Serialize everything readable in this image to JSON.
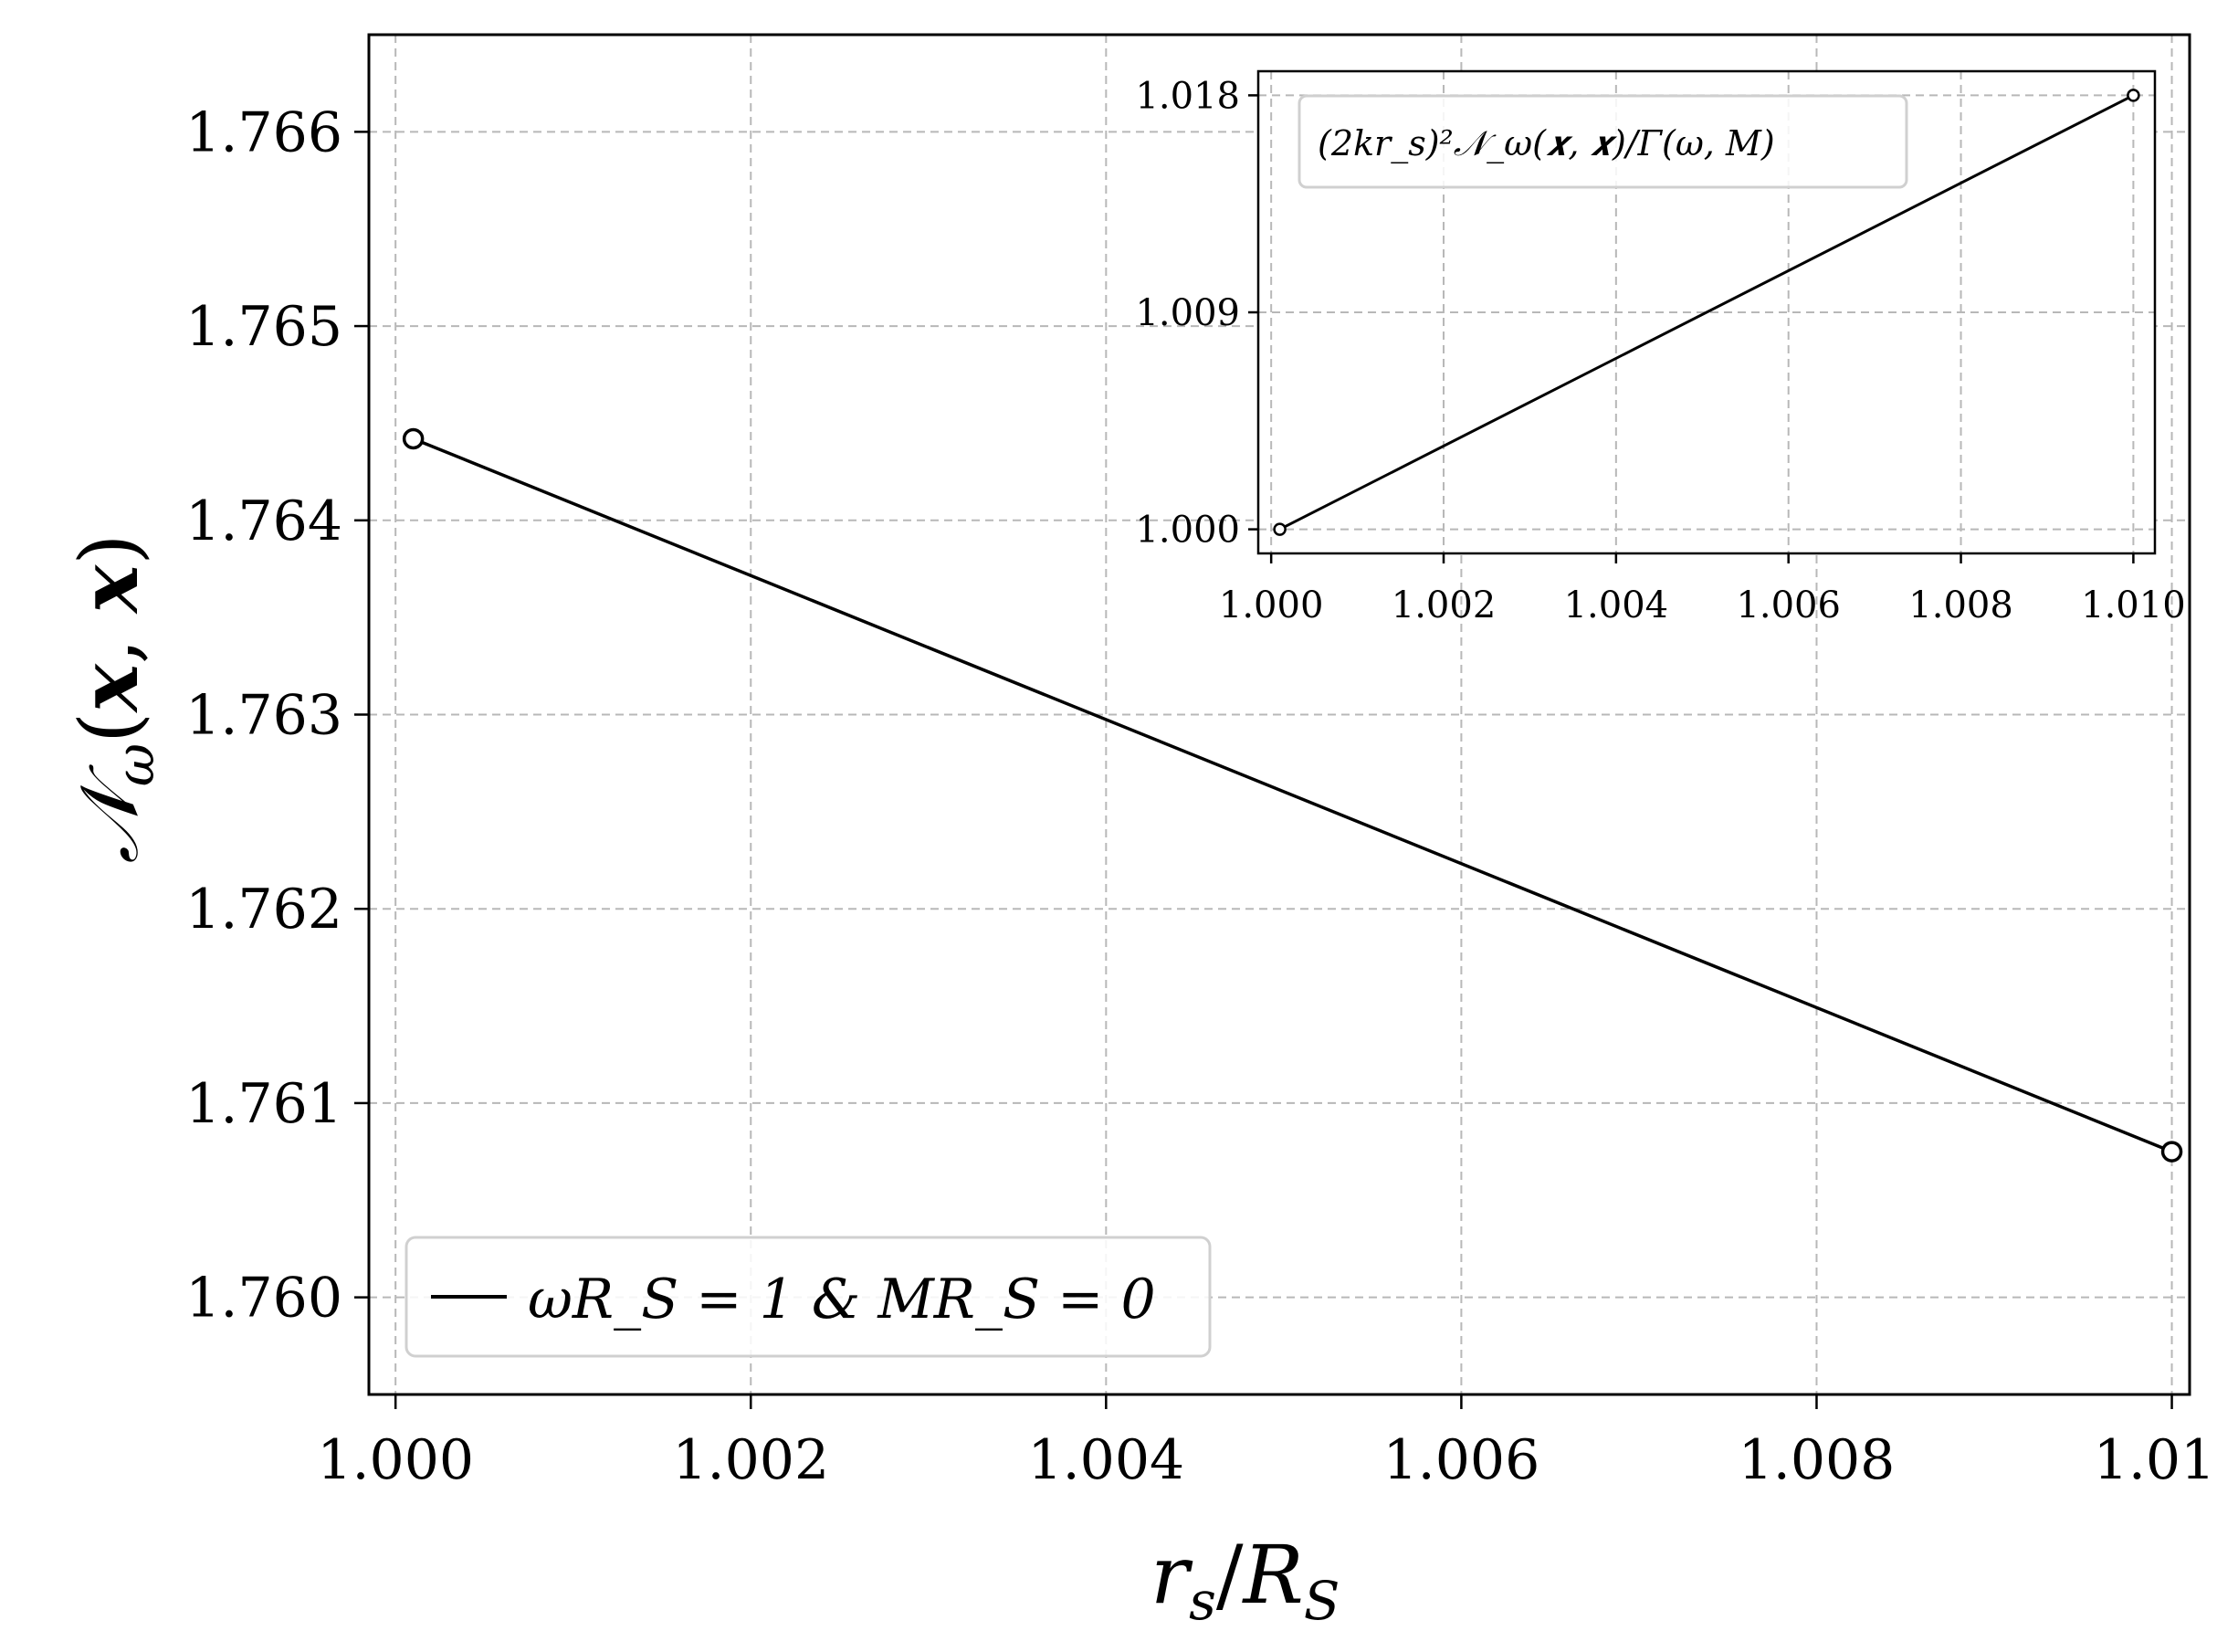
{
  "chart_data": [
    {
      "id": "main",
      "type": "line",
      "xlabel": "r_s/R_S",
      "ylabel": "𝒩_ω(𝒙, 𝒙)",
      "xlim": [
        0.99985,
        1.0101
      ],
      "ylim": [
        1.7595,
        1.7665
      ],
      "xticks": [
        "1.000",
        "1.002",
        "1.004",
        "1.006",
        "1.008",
        "1.010"
      ],
      "yticks": [
        "1.760",
        "1.761",
        "1.762",
        "1.763",
        "1.764",
        "1.765",
        "1.766"
      ],
      "grid": true,
      "legend_placement": "lower-left",
      "series": [
        {
          "name": "ωR_S = 1 & MR_S = 0",
          "color": "#000000",
          "marker": "open-circle",
          "x": [
            1.0001,
            1.01
          ],
          "y": [
            1.76442,
            1.76075
          ]
        }
      ]
    },
    {
      "id": "inset",
      "type": "line",
      "xlim": [
        0.99985,
        1.01025
      ],
      "ylim": [
        0.999,
        1.019
      ],
      "xticks": [
        "1.000",
        "1.002",
        "1.004",
        "1.006",
        "1.008",
        "1.010"
      ],
      "yticks": [
        "1.000",
        "1.009",
        "1.018"
      ],
      "grid": true,
      "legend_placement": "top-left",
      "series": [
        {
          "name": "(2kr_s)²𝒩_ω(𝒙, 𝒙)/Γ(ω, M)",
          "color": "#000000",
          "marker": "open-circle",
          "x": [
            1.0001,
            1.01
          ],
          "y": [
            1.0,
            1.018
          ]
        }
      ]
    }
  ]
}
